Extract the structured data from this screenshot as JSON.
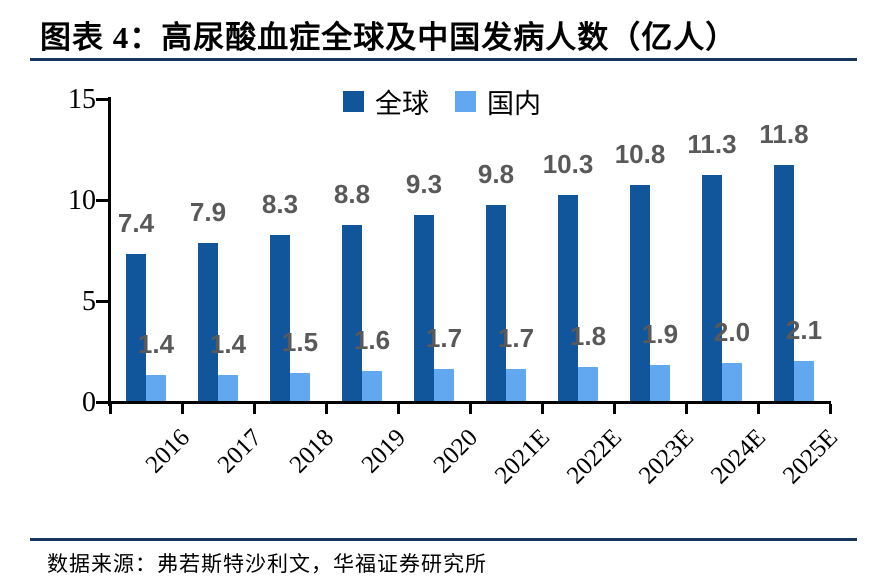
{
  "header": {
    "title": "图表 4：高尿酸血症全球及中国发病人数（亿人）"
  },
  "footer": {
    "source": "数据来源：弗若斯特沙利文，华福证券研究所"
  },
  "colors": {
    "global_series": "#11569a",
    "domestic_series": "#61a8f0",
    "rule_line": "#17375e",
    "axis": "#000000",
    "data_label": "#595959"
  },
  "chart_data": {
    "type": "bar",
    "title": "图表 4：高尿酸血症全球及中国发病人数（亿人）",
    "unit": "亿人",
    "categories": [
      "2016",
      "2017",
      "2018",
      "2019",
      "2020",
      "2021E",
      "2022E",
      "2023E",
      "2024E",
      "2025E"
    ],
    "series": [
      {
        "name": "全球",
        "color": "#11569a",
        "values": [
          7.4,
          7.9,
          8.3,
          8.8,
          9.3,
          9.8,
          10.3,
          10.8,
          11.3,
          11.8
        ]
      },
      {
        "name": "国内",
        "color": "#61a8f0",
        "values": [
          1.4,
          1.4,
          1.5,
          1.6,
          1.7,
          1.7,
          1.8,
          1.9,
          2.0,
          2.1
        ]
      }
    ],
    "ylim": [
      0,
      15
    ],
    "yticks": [
      0,
      5,
      10,
      15
    ],
    "xlabel": "",
    "ylabel": "",
    "grid": false,
    "legend_position": "top-center",
    "data_labels": true,
    "xtick_rotation_deg": 45
  }
}
